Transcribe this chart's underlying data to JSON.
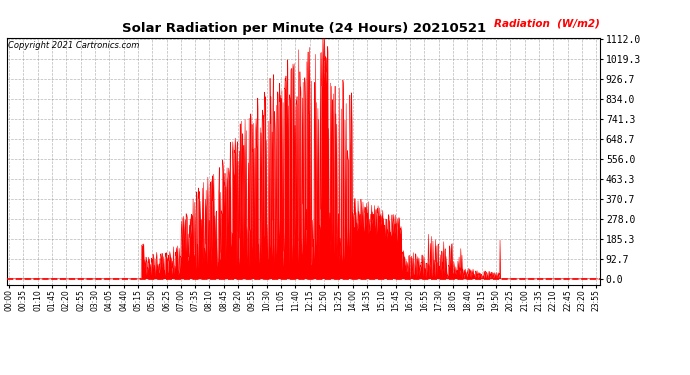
{
  "title": "Solar Radiation per Minute (24 Hours) 20210521",
  "copyright": "Copyright 2021 Cartronics.com",
  "ylabel": "Radiation  (W/m2)",
  "ymax": 1112.0,
  "yticks": [
    0.0,
    92.7,
    185.3,
    278.0,
    370.7,
    463.3,
    556.0,
    648.7,
    741.3,
    834.0,
    926.7,
    1019.3,
    1112.0
  ],
  "bar_color": "#FF0000",
  "baseline_color": "#FF0000",
  "grid_color": "#888888",
  "background_color": "#FFFFFF",
  "title_color": "#000000",
  "ylabel_color": "#FF0000",
  "copyright_color": "#000000",
  "tick_interval_min": 35
}
